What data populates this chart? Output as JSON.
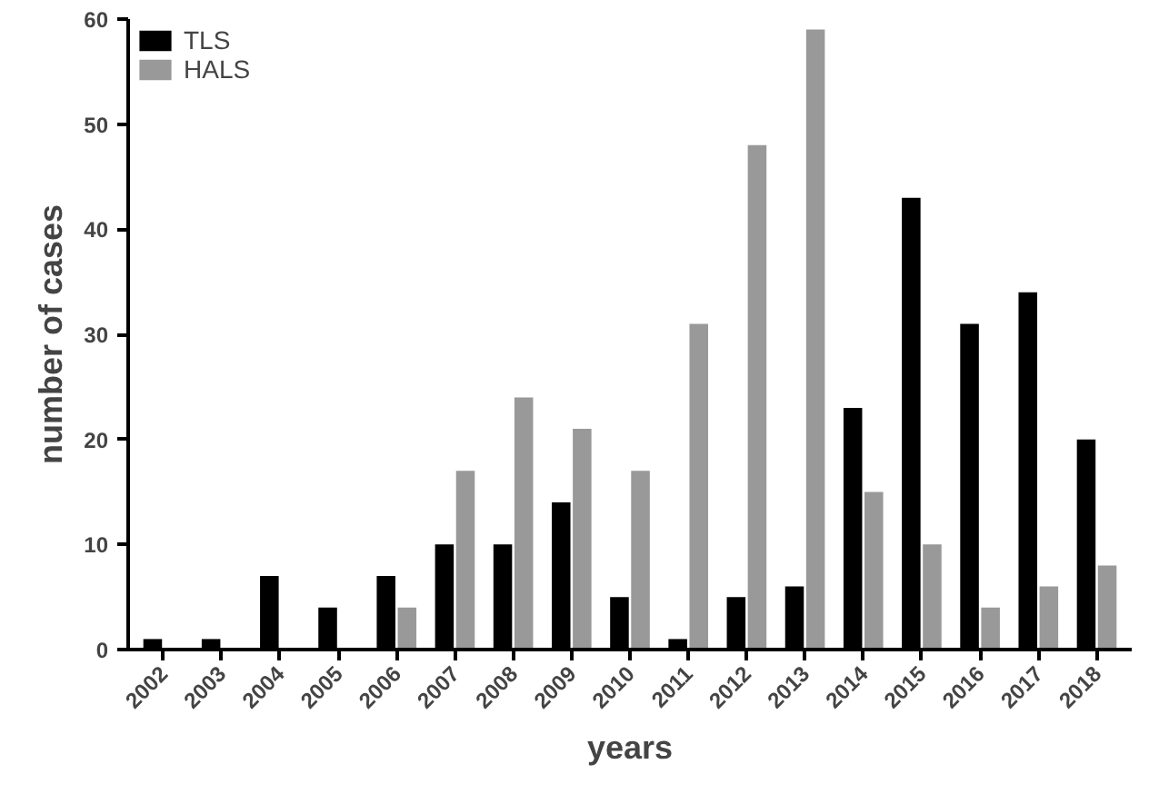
{
  "chart_data": {
    "type": "bar",
    "xlabel": "years",
    "ylabel": "number of cases",
    "categories": [
      "2002",
      "2003",
      "2004",
      "2005",
      "2006",
      "2007",
      "2008",
      "2009",
      "2010",
      "2011",
      "2012",
      "2013",
      "2014",
      "2015",
      "2016",
      "2017",
      "2018"
    ],
    "series": [
      {
        "name": "TLS",
        "color": "#000000",
        "values": [
          1,
          1,
          7,
          4,
          7,
          10,
          10,
          14,
          5,
          1,
          5,
          6,
          23,
          43,
          31,
          34,
          20
        ]
      },
      {
        "name": "HALS",
        "color": "#999999",
        "values": [
          0,
          0,
          0,
          0,
          4,
          17,
          24,
          21,
          17,
          31,
          48,
          59,
          15,
          10,
          4,
          6,
          8
        ]
      }
    ],
    "ylim": [
      0,
      60
    ],
    "yticks": [
      0,
      10,
      20,
      30,
      40,
      50,
      60
    ],
    "grid": false,
    "legend": "top left"
  }
}
